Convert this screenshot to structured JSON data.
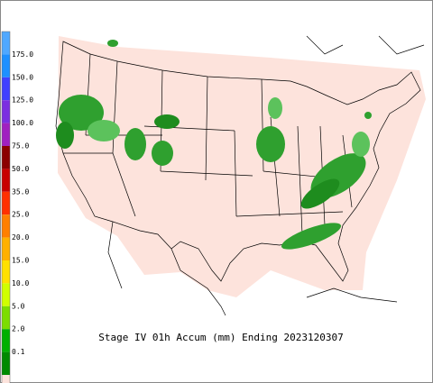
{
  "map": {
    "caption": "Stage IV 01h Accum (mm) Ending 2023120307",
    "legend": [
      {
        "label": "175.0",
        "color": "#1e90ff"
      },
      {
        "label": "150.0",
        "color": "#4040ff"
      },
      {
        "label": "125.0",
        "color": "#7b2ee0"
      },
      {
        "label": "100.0",
        "color": "#a020c0"
      },
      {
        "label": "75.0",
        "color": "#8b0000"
      },
      {
        "label": "50.0",
        "color": "#c80000"
      },
      {
        "label": "35.0",
        "color": "#ff3000"
      },
      {
        "label": "25.0",
        "color": "#ff7f00"
      },
      {
        "label": "20.0",
        "color": "#ffb000"
      },
      {
        "label": "15.0",
        "color": "#ffe000"
      },
      {
        "label": "10.0",
        "color": "#d0ff00"
      },
      {
        "label": "5.0",
        "color": "#7cdd00"
      },
      {
        "label": "2.0",
        "color": "#00b000"
      },
      {
        "label": "0.1",
        "color": "#008a00"
      }
    ],
    "top_color": "#4fa8ff",
    "base_color": "#fde3dc"
  }
}
